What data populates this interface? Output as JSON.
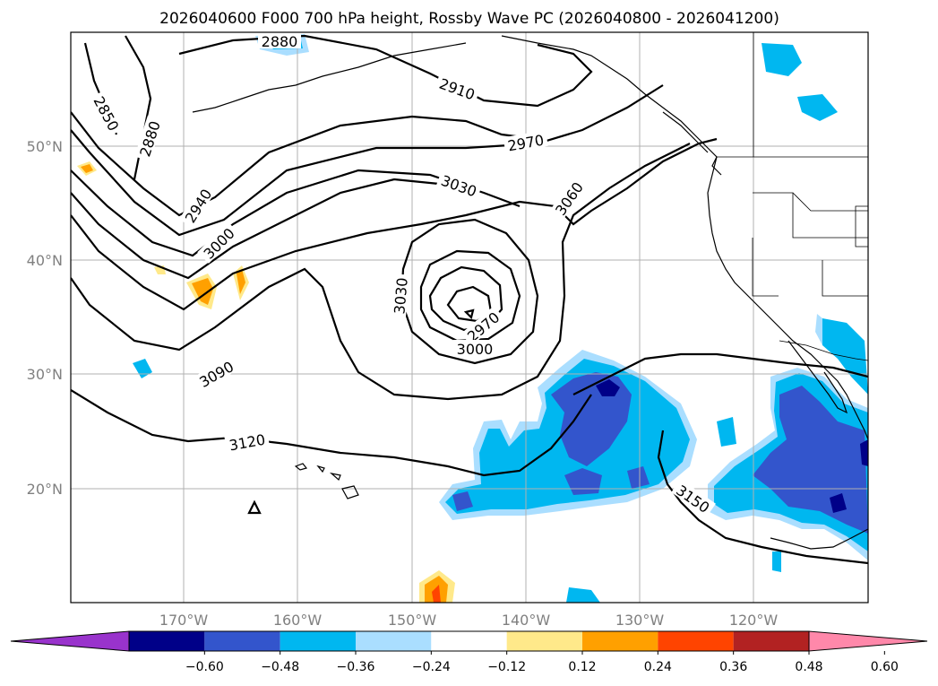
{
  "title": "2026040600 F000 700 hPa height, Rossby Wave PC (2026040800 - 2026041200)",
  "axes": {
    "lat_labels": [
      "50°N",
      "40°N",
      "30°N",
      "20°N"
    ],
    "lon_labels": [
      "170°W",
      "160°W",
      "150°W",
      "140°W",
      "130°W",
      "120°W"
    ]
  },
  "colorbar": {
    "ticks": [
      "−0.60",
      "−0.48",
      "−0.36",
      "−0.24",
      "−0.12",
      "0.12",
      "0.24",
      "0.36",
      "0.48",
      "0.60"
    ],
    "colors": [
      "#9933cc",
      "#000088",
      "#3355cc",
      "#00b7f0",
      "#aadeff",
      "#ffffff",
      "#ffe98a",
      "#ffa000",
      "#ff4400",
      "#b22222",
      "#ff88aa"
    ]
  },
  "contour_labels": [
    "2850",
    "2880",
    "2880",
    "2910",
    "2940",
    "2970",
    "2970",
    "3000",
    "3000",
    "3030",
    "3030",
    "3060",
    "3090",
    "3120",
    "3150"
  ],
  "colors": {
    "frame": "#000000",
    "grid": "#b0b0b0",
    "contour": "#000000",
    "coast": "#000000"
  }
}
